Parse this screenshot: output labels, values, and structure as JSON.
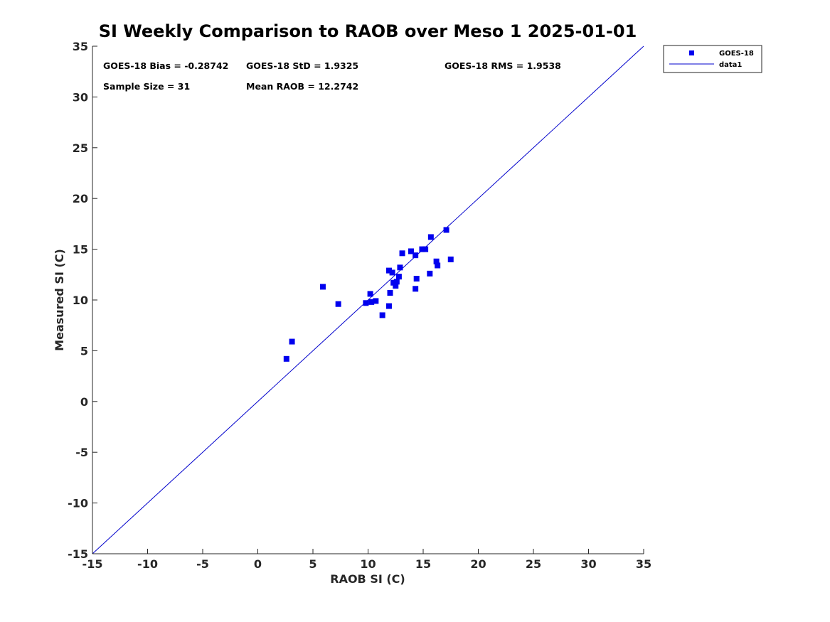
{
  "chart_data": {
    "type": "scatter",
    "title": "SI Weekly Comparison to RAOB over Meso 1 2025-01-01",
    "xlabel": "RAOB SI (C)",
    "ylabel": "Measured SI (C)",
    "xlim": [
      -15,
      35
    ],
    "ylim": [
      -15,
      35
    ],
    "xticks": [
      -15,
      -10,
      -5,
      0,
      5,
      10,
      15,
      20,
      25,
      30,
      35
    ],
    "yticks": [
      -15,
      -10,
      -5,
      0,
      5,
      10,
      15,
      20,
      25,
      30,
      35
    ],
    "grid": false,
    "legend_position": "outside-top-right",
    "colors": {
      "series": "#0000ee",
      "line": "#0000cc",
      "axes": "#262626"
    },
    "series": [
      {
        "name": "GOES-18",
        "marker": "square",
        "points": [
          [
            2.6,
            4.2
          ],
          [
            3.1,
            5.9
          ],
          [
            5.9,
            11.3
          ],
          [
            7.3,
            9.6
          ],
          [
            9.8,
            9.7
          ],
          [
            10.2,
            10.6
          ],
          [
            10.3,
            9.8
          ],
          [
            10.7,
            9.9
          ],
          [
            11.3,
            8.5
          ],
          [
            11.9,
            12.9
          ],
          [
            11.9,
            9.4
          ],
          [
            12.0,
            10.7
          ],
          [
            12.2,
            12.7
          ],
          [
            12.3,
            11.7
          ],
          [
            12.5,
            11.4
          ],
          [
            12.6,
            11.8
          ],
          [
            12.8,
            12.3
          ],
          [
            12.9,
            13.2
          ],
          [
            13.1,
            14.6
          ],
          [
            13.9,
            14.8
          ],
          [
            14.3,
            14.4
          ],
          [
            14.3,
            11.1
          ],
          [
            14.4,
            12.1
          ],
          [
            14.9,
            15.0
          ],
          [
            15.2,
            15.0
          ],
          [
            15.6,
            12.6
          ],
          [
            15.7,
            16.2
          ],
          [
            16.2,
            13.8
          ],
          [
            16.3,
            13.4
          ],
          [
            17.1,
            16.9
          ],
          [
            17.5,
            14.0
          ]
        ]
      },
      {
        "name": "data1",
        "type": "line",
        "x": [
          -15,
          35
        ],
        "y": [
          -15,
          35
        ]
      }
    ],
    "annotations": [
      {
        "key": "bias",
        "text": "GOES-18 Bias = -0.28742"
      },
      {
        "key": "std",
        "text": "GOES-18 StD = 1.9325"
      },
      {
        "key": "rms",
        "text": "GOES-18 RMS = 1.9538"
      },
      {
        "key": "n",
        "text": "Sample Size = 31"
      },
      {
        "key": "mean",
        "text": "Mean RAOB = 12.2742"
      }
    ]
  }
}
